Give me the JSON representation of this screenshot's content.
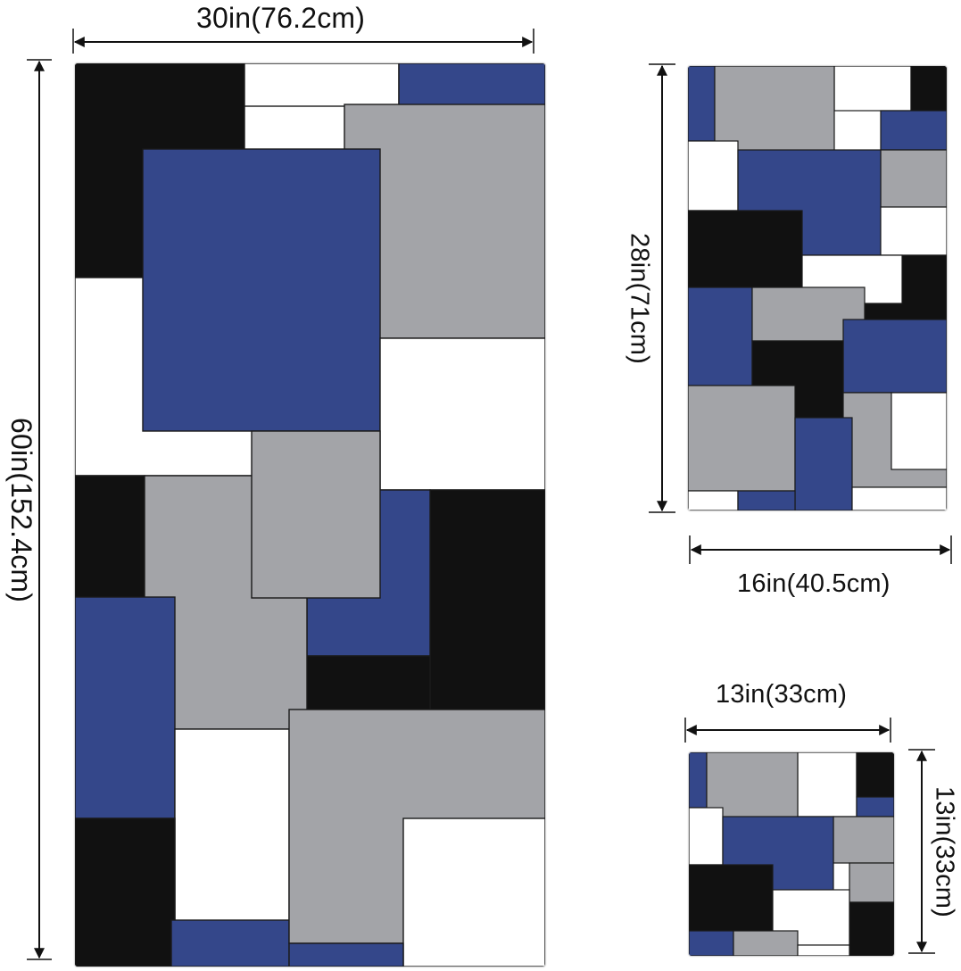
{
  "colors": {
    "navy": "#34478a",
    "gray": "#a3a4a8",
    "black": "#111111",
    "white": "#ffffff",
    "outline": "#1a1a1a"
  },
  "bath_towel": {
    "width_label": "30in(76.2cm)",
    "height_label": "60in(152.4cm)"
  },
  "hand_towel": {
    "height_label": "28in(71cm)",
    "width_label": "16in(40.5cm)"
  },
  "washcloth": {
    "width_label": "13in(33cm)",
    "height_label": "13in(33cm)"
  }
}
